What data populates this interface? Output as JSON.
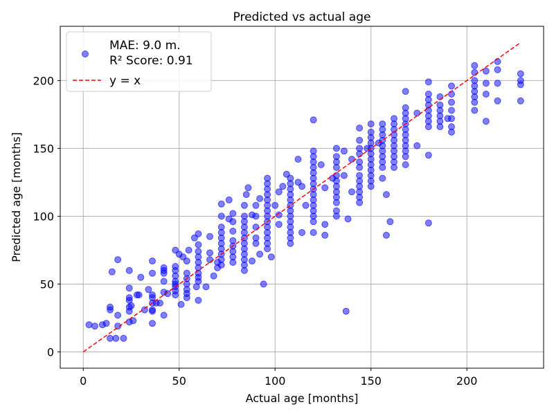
{
  "chart_data": {
    "type": "scatter",
    "title": "Predicted vs actual age",
    "xlabel": "Actual age [months]",
    "ylabel": "Predicted age [months]",
    "xlim": [
      -12,
      240
    ],
    "ylim": [
      -12,
      240
    ],
    "xticks": [
      0,
      50,
      100,
      150,
      200
    ],
    "yticks": [
      0,
      50,
      100,
      150,
      200
    ],
    "xtick_labels": [
      "0",
      "50",
      "100",
      "150",
      "200"
    ],
    "ytick_labels": [
      "0",
      "50",
      "100",
      "150",
      "200"
    ],
    "grid": true,
    "legend_position": "top-left",
    "legend": {
      "scatter_label_line1": "MAE: 9.0 m.",
      "scatter_label_line2": "R² Score: 0.91",
      "line_label": "y = x"
    },
    "colors": {
      "points": "#0000ff",
      "line": "#ff0000",
      "grid": "#b0b0b0"
    },
    "reference_line": {
      "name": "y = x",
      "x": [
        0,
        228
      ],
      "y": [
        0,
        228
      ],
      "style": "dashed"
    },
    "series": [
      {
        "points": [
          [
            3,
            20
          ],
          [
            6,
            19
          ],
          [
            10,
            20
          ],
          [
            12,
            21
          ],
          [
            14,
            33
          ],
          [
            14,
            31
          ],
          [
            14,
            10
          ],
          [
            15,
            59
          ],
          [
            17,
            10
          ],
          [
            18,
            27
          ],
          [
            18,
            19
          ],
          [
            18,
            68
          ],
          [
            21,
            10
          ],
          [
            24,
            22
          ],
          [
            24,
            30
          ],
          [
            24,
            33
          ],
          [
            24,
            38
          ],
          [
            24,
            40
          ],
          [
            24,
            47
          ],
          [
            24,
            60
          ],
          [
            25,
            34
          ],
          [
            26,
            23
          ],
          [
            28,
            42
          ],
          [
            29,
            42
          ],
          [
            30,
            55
          ],
          [
            32,
            31
          ],
          [
            34,
            46
          ],
          [
            36,
            67
          ],
          [
            36,
            42
          ],
          [
            36,
            40
          ],
          [
            36,
            36
          ],
          [
            36,
            31
          ],
          [
            36,
            30
          ],
          [
            36,
            21
          ],
          [
            36,
            58
          ],
          [
            38,
            36
          ],
          [
            40,
            36
          ],
          [
            42,
            27
          ],
          [
            42,
            44
          ],
          [
            42,
            52
          ],
          [
            42,
            58
          ],
          [
            42,
            60
          ],
          [
            42,
            62
          ],
          [
            44,
            43
          ],
          [
            48,
            75
          ],
          [
            48,
            63
          ],
          [
            48,
            60
          ],
          [
            48,
            56
          ],
          [
            48,
            52
          ],
          [
            48,
            50
          ],
          [
            48,
            48
          ],
          [
            48,
            45
          ],
          [
            48,
            42
          ],
          [
            50,
            72
          ],
          [
            51,
            35
          ],
          [
            52,
            70
          ],
          [
            54,
            67
          ],
          [
            54,
            58
          ],
          [
            54,
            54
          ],
          [
            54,
            50
          ],
          [
            54,
            46
          ],
          [
            54,
            43
          ],
          [
            54,
            40
          ],
          [
            55,
            75
          ],
          [
            58,
            84
          ],
          [
            59,
            48
          ],
          [
            60,
            87
          ],
          [
            60,
            79
          ],
          [
            60,
            74
          ],
          [
            60,
            70
          ],
          [
            60,
            66
          ],
          [
            60,
            62
          ],
          [
            60,
            58
          ],
          [
            60,
            55
          ],
          [
            60,
            52
          ],
          [
            60,
            38
          ],
          [
            64,
            48
          ],
          [
            66,
            68
          ],
          [
            66,
            85
          ],
          [
            66,
            73
          ],
          [
            68,
            56
          ],
          [
            70,
            66
          ],
          [
            70,
            62
          ],
          [
            72,
            109
          ],
          [
            72,
            100
          ],
          [
            72,
            92
          ],
          [
            72,
            88
          ],
          [
            72,
            84
          ],
          [
            72,
            80
          ],
          [
            72,
            76
          ],
          [
            72,
            72
          ],
          [
            72,
            68
          ],
          [
            72,
            64
          ],
          [
            76,
            112
          ],
          [
            76,
            98
          ],
          [
            78,
            89
          ],
          [
            78,
            96
          ],
          [
            78,
            102
          ],
          [
            78,
            82
          ],
          [
            78,
            78
          ],
          [
            78,
            74
          ],
          [
            78,
            70
          ],
          [
            78,
            66
          ],
          [
            84,
            108
          ],
          [
            84,
            100
          ],
          [
            84,
            96
          ],
          [
            84,
            92
          ],
          [
            84,
            88
          ],
          [
            84,
            84
          ],
          [
            84,
            80
          ],
          [
            84,
            76
          ],
          [
            84,
            72
          ],
          [
            84,
            68
          ],
          [
            84,
            64
          ],
          [
            84,
            60
          ],
          [
            85,
            116
          ],
          [
            86,
            121
          ],
          [
            88,
            101
          ],
          [
            88,
            67
          ],
          [
            90,
            108
          ],
          [
            90,
            100
          ],
          [
            90,
            92
          ],
          [
            90,
            84
          ],
          [
            90,
            80
          ],
          [
            92,
            113
          ],
          [
            92,
            72
          ],
          [
            94,
            50
          ],
          [
            96,
            128
          ],
          [
            96,
            124
          ],
          [
            96,
            120
          ],
          [
            96,
            116
          ],
          [
            96,
            112
          ],
          [
            96,
            108
          ],
          [
            96,
            104
          ],
          [
            96,
            100
          ],
          [
            96,
            96
          ],
          [
            96,
            92
          ],
          [
            96,
            88
          ],
          [
            96,
            84
          ],
          [
            96,
            80
          ],
          [
            96,
            76
          ],
          [
            98,
            70
          ],
          [
            100,
            108
          ],
          [
            102,
            101
          ],
          [
            102,
            118
          ],
          [
            102,
            94
          ],
          [
            104,
            122
          ],
          [
            106,
            131
          ],
          [
            108,
            128
          ],
          [
            108,
            124
          ],
          [
            108,
            120
          ],
          [
            108,
            116
          ],
          [
            108,
            112
          ],
          [
            108,
            108
          ],
          [
            108,
            104
          ],
          [
            108,
            100
          ],
          [
            108,
            96
          ],
          [
            108,
            92
          ],
          [
            108,
            88
          ],
          [
            108,
            84
          ],
          [
            108,
            80
          ],
          [
            112,
            142
          ],
          [
            112,
            125
          ],
          [
            114,
            88
          ],
          [
            114,
            122
          ],
          [
            116,
            108
          ],
          [
            120,
            171
          ],
          [
            120,
            148
          ],
          [
            120,
            144
          ],
          [
            120,
            140
          ],
          [
            120,
            136
          ],
          [
            120,
            132
          ],
          [
            120,
            128
          ],
          [
            120,
            124
          ],
          [
            120,
            120
          ],
          [
            120,
            116
          ],
          [
            120,
            112
          ],
          [
            120,
            108
          ],
          [
            120,
            104
          ],
          [
            120,
            100
          ],
          [
            120,
            96
          ],
          [
            120,
            88
          ],
          [
            124,
            138
          ],
          [
            126,
            121
          ],
          [
            126,
            94
          ],
          [
            126,
            86
          ],
          [
            130,
            128
          ],
          [
            132,
            150
          ],
          [
            132,
            144
          ],
          [
            132,
            140
          ],
          [
            132,
            136
          ],
          [
            132,
            130
          ],
          [
            132,
            126
          ],
          [
            132,
            122
          ],
          [
            132,
            118
          ],
          [
            132,
            114
          ],
          [
            132,
            110
          ],
          [
            132,
            104
          ],
          [
            132,
            100
          ],
          [
            136,
            148
          ],
          [
            136,
            130
          ],
          [
            137,
            30
          ],
          [
            138,
            98
          ],
          [
            140,
            142
          ],
          [
            140,
            118
          ],
          [
            144,
            165
          ],
          [
            144,
            156
          ],
          [
            144,
            150
          ],
          [
            144,
            146
          ],
          [
            144,
            140
          ],
          [
            144,
            136
          ],
          [
            144,
            130
          ],
          [
            144,
            126
          ],
          [
            144,
            122
          ],
          [
            144,
            118
          ],
          [
            144,
            114
          ],
          [
            144,
            110
          ],
          [
            148,
            150
          ],
          [
            150,
            168
          ],
          [
            150,
            162
          ],
          [
            150,
            158
          ],
          [
            150,
            154
          ],
          [
            150,
            150
          ],
          [
            150,
            146
          ],
          [
            150,
            142
          ],
          [
            150,
            138
          ],
          [
            150,
            134
          ],
          [
            150,
            130
          ],
          [
            150,
            126
          ],
          [
            150,
            122
          ],
          [
            154,
            154
          ],
          [
            156,
            168
          ],
          [
            156,
            164
          ],
          [
            156,
            160
          ],
          [
            156,
            156
          ],
          [
            156,
            152
          ],
          [
            156,
            148
          ],
          [
            156,
            144
          ],
          [
            156,
            140
          ],
          [
            156,
            136
          ],
          [
            156,
            128
          ],
          [
            158,
            116
          ],
          [
            158,
            86
          ],
          [
            160,
            96
          ],
          [
            162,
            172
          ],
          [
            162,
            168
          ],
          [
            162,
            164
          ],
          [
            162,
            160
          ],
          [
            162,
            156
          ],
          [
            162,
            152
          ],
          [
            162,
            148
          ],
          [
            162,
            144
          ],
          [
            162,
            140
          ],
          [
            162,
            136
          ],
          [
            168,
            192
          ],
          [
            168,
            180
          ],
          [
            168,
            176
          ],
          [
            168,
            172
          ],
          [
            168,
            168
          ],
          [
            168,
            164
          ],
          [
            168,
            160
          ],
          [
            168,
            156
          ],
          [
            168,
            152
          ],
          [
            168,
            148
          ],
          [
            168,
            144
          ],
          [
            168,
            138
          ],
          [
            174,
            152
          ],
          [
            174,
            176
          ],
          [
            180,
            199
          ],
          [
            180,
            190
          ],
          [
            180,
            186
          ],
          [
            180,
            182
          ],
          [
            180,
            178
          ],
          [
            180,
            174
          ],
          [
            180,
            170
          ],
          [
            180,
            166
          ],
          [
            180,
            145
          ],
          [
            180,
            95
          ],
          [
            186,
            182
          ],
          [
            186,
            178
          ],
          [
            186,
            174
          ],
          [
            186,
            170
          ],
          [
            186,
            166
          ],
          [
            186,
            188
          ],
          [
            190,
            172
          ],
          [
            192,
            196
          ],
          [
            192,
            190
          ],
          [
            192,
            184
          ],
          [
            192,
            178
          ],
          [
            192,
            172
          ],
          [
            192,
            166
          ],
          [
            192,
            162
          ],
          [
            204,
            211
          ],
          [
            204,
            206
          ],
          [
            204,
            200
          ],
          [
            204,
            196
          ],
          [
            204,
            192
          ],
          [
            204,
            188
          ],
          [
            204,
            184
          ],
          [
            204,
            178
          ],
          [
            210,
            207
          ],
          [
            210,
            198
          ],
          [
            210,
            190
          ],
          [
            210,
            170
          ],
          [
            216,
            214
          ],
          [
            216,
            208
          ],
          [
            216,
            198
          ],
          [
            216,
            185
          ],
          [
            228,
            205
          ],
          [
            228,
            200
          ],
          [
            228,
            197
          ],
          [
            228,
            185
          ]
        ]
      }
    ]
  }
}
